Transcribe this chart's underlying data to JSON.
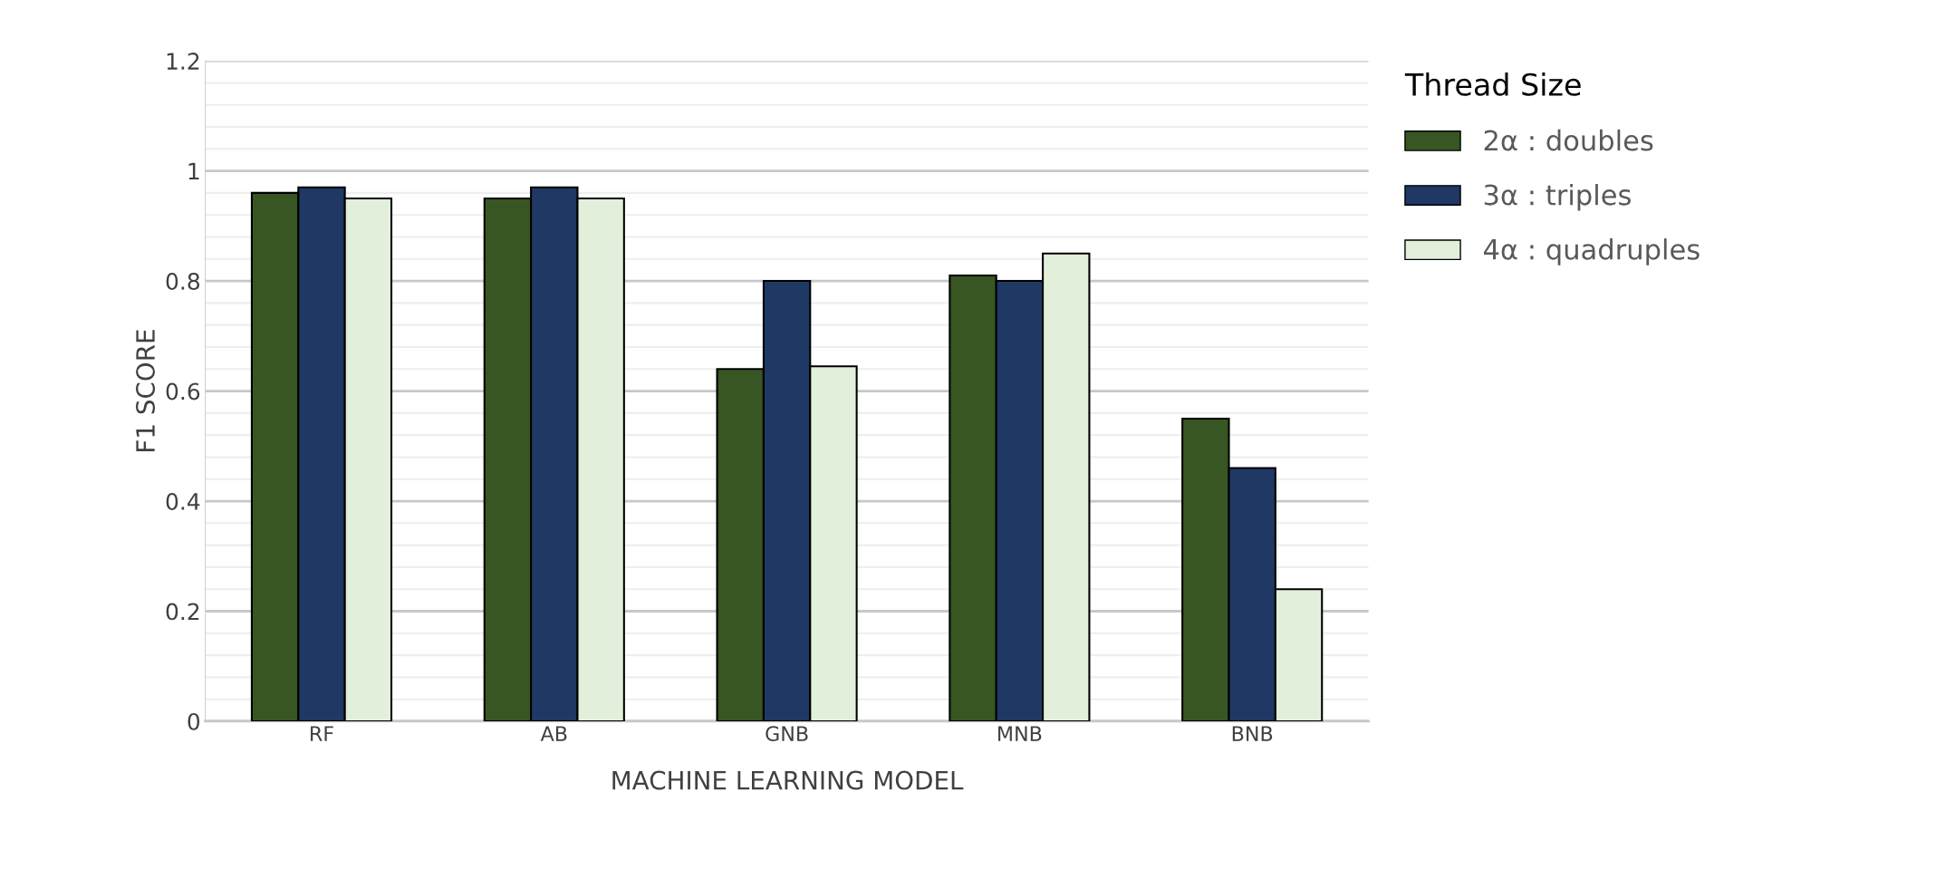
{
  "chart_data": {
    "type": "bar",
    "xlabel": "MACHINE LEARNING MODEL",
    "ylabel": "F1 SCORE",
    "legend_title": "Thread Size",
    "categories": [
      "RF",
      "AB",
      "GNB",
      "MNB",
      "BNB"
    ],
    "series": [
      {
        "name": "2α : doubles",
        "color": "#375623",
        "values": [
          0.96,
          0.95,
          0.64,
          0.81,
          0.55
        ]
      },
      {
        "name": "3α : triples",
        "color": "#1f3864",
        "values": [
          0.97,
          0.97,
          0.8,
          0.8,
          0.46
        ]
      },
      {
        "name": "4α : quadruples",
        "color": "#e2efda",
        "values": [
          0.95,
          0.95,
          0.645,
          0.85,
          0.24
        ]
      }
    ],
    "ylim": [
      0,
      1.2
    ],
    "yticks": [
      0,
      0.2,
      0.4,
      0.6,
      0.8,
      1,
      1.2
    ],
    "grid": "y",
    "legend": "top right"
  }
}
